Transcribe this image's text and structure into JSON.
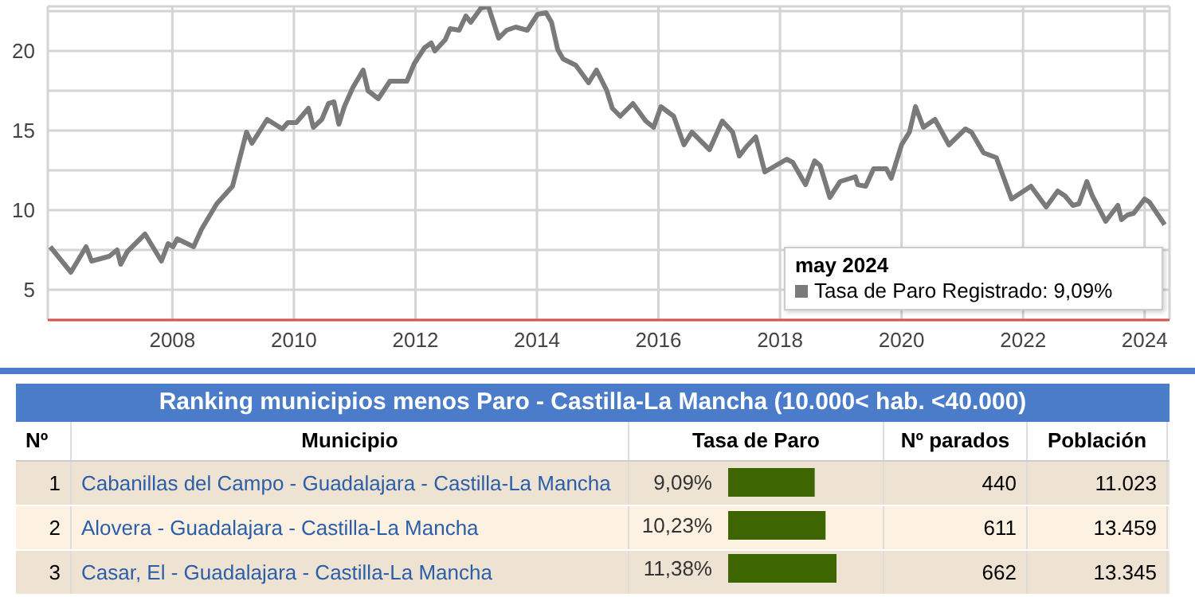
{
  "chart_data": [
    {
      "type": "line",
      "x": [
        2005.99,
        2006.33,
        2006.58,
        2006.67,
        2006.96,
        2007.09,
        2007.15,
        2007.26,
        2007.55,
        2007.82,
        2007.93,
        2008.01,
        2008.08,
        2008.35,
        2008.48,
        2008.73,
        2008.99,
        2009.22,
        2009.31,
        2009.56,
        2009.81,
        2009.9,
        2010.04,
        2010.24,
        2010.32,
        2010.46,
        2010.57,
        2010.66,
        2010.74,
        2010.83,
        2010.97,
        2011.14,
        2011.22,
        2011.39,
        2011.58,
        2011.86,
        2011.98,
        2012.15,
        2012.26,
        2012.32,
        2012.49,
        2012.57,
        2012.72,
        2012.83,
        2012.91,
        2013.08,
        2013.2,
        2013.37,
        2013.5,
        2013.65,
        2013.84,
        2014.01,
        2014.15,
        2014.24,
        2014.34,
        2014.43,
        2014.64,
        2014.85,
        2014.98,
        2015.15,
        2015.24,
        2015.37,
        2015.58,
        2015.79,
        2015.92,
        2016.04,
        2016.25,
        2016.42,
        2016.55,
        2016.84,
        2017.05,
        2017.22,
        2017.33,
        2017.45,
        2017.6,
        2017.75,
        2018.11,
        2018.21,
        2018.42,
        2018.57,
        2018.66,
        2018.82,
        2018.99,
        2019.16,
        2019.24,
        2019.28,
        2019.41,
        2019.54,
        2019.75,
        2019.83,
        2020.0,
        2020.13,
        2020.23,
        2020.36,
        2020.55,
        2020.78,
        2021.05,
        2021.15,
        2021.35,
        2021.56,
        2021.81,
        2022.13,
        2022.38,
        2022.57,
        2022.69,
        2022.82,
        2022.92,
        2023.05,
        2023.14,
        2023.36,
        2023.56,
        2023.62,
        2023.72,
        2023.82,
        2024.0,
        2024.08,
        2024.33
      ],
      "series": [
        {
          "color": "#7a7a7a",
          "values": [
            7.7,
            6.1,
            7.7,
            6.8,
            7.1,
            7.5,
            6.6,
            7.4,
            8.5,
            6.8,
            7.9,
            7.7,
            8.2,
            7.7,
            8.8,
            10.4,
            11.5,
            14.9,
            14.2,
            15.7,
            15.1,
            15.5,
            15.5,
            16.4,
            15.2,
            15.7,
            16.7,
            16.8,
            15.4,
            16.5,
            17.7,
            18.8,
            17.5,
            17.0,
            18.1,
            18.1,
            19.2,
            20.2,
            20.5,
            20.0,
            20.7,
            21.4,
            21.3,
            22.2,
            21.8,
            22.7,
            22.8,
            20.8,
            21.3,
            21.5,
            21.3,
            22.3,
            22.4,
            21.8,
            20.1,
            19.5,
            19.1,
            18.0,
            18.8,
            17.5,
            16.4,
            15.9,
            16.7,
            15.6,
            15.2,
            16.5,
            15.9,
            14.1,
            14.9,
            13.8,
            15.6,
            14.9,
            13.4,
            14.0,
            14.6,
            12.4,
            13.2,
            13.0,
            11.6,
            13.1,
            12.8,
            10.8,
            11.8,
            12.0,
            12.1,
            11.6,
            11.5,
            12.6,
            12.6,
            12.0,
            14.1,
            14.9,
            16.5,
            15.2,
            15.7,
            14.1,
            15.1,
            14.9,
            13.6,
            13.3,
            10.7,
            11.5,
            10.2,
            11.2,
            10.9,
            10.3,
            10.4,
            11.8,
            10.9,
            9.3,
            10.3,
            9.4,
            9.7,
            9.8,
            10.7,
            10.5,
            9.09
          ]
        }
      ],
      "xlim": [
        2005.95,
        2024.41
      ],
      "xticks": [
        2008,
        2010,
        2012,
        2014,
        2016,
        2018,
        2020,
        2022,
        2024
      ],
      "ylim": [
        3.1,
        22.8
      ],
      "yticks": [
        5,
        {
          "value": 7.5,
          "label": null
        },
        10,
        {
          "value": 12.5,
          "label": null
        },
        15,
        {
          "value": 17.5,
          "label": null
        },
        20,
        {
          "value": 22.5,
          "label": null
        }
      ],
      "grid": true,
      "annotations": [
        "may 2024",
        "Tasa de Paro Registrado: 9,09%"
      ]
    },
    {
      "type": "bar",
      "orientation": "horizontal",
      "title": "Ranking municipios menos Paro - Castilla-La Mancha (10.000< hab. <40.000)",
      "categories": [
        "Cabanillas del Campo - Guadalajara - Castilla-La Mancha",
        "Alovera - Guadalajara - Castilla-La Mancha",
        "Casar, El - Guadalajara - Castilla-La Mancha"
      ],
      "values": [
        9.09,
        10.23,
        11.38
      ],
      "value_labels": [
        "9,09%",
        "10,23%",
        "11,38%"
      ],
      "color": "#3d6600",
      "annotations": [
        "Nº",
        "Municipio",
        "Tasa de Paro",
        "Nº parados",
        "Población",
        "1",
        "2",
        "3",
        "440",
        "611",
        "662",
        "11.023",
        "13.459",
        "13.345"
      ]
    }
  ]
}
